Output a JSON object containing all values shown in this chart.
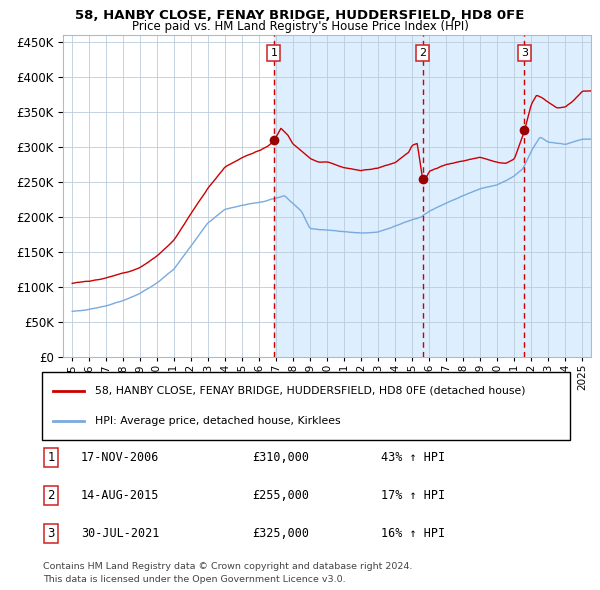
{
  "title": "58, HANBY CLOSE, FENAY BRIDGE, HUDDERSFIELD, HD8 0FE",
  "subtitle": "Price paid vs. HM Land Registry's House Price Index (HPI)",
  "legend_line1": "58, HANBY CLOSE, FENAY BRIDGE, HUDDERSFIELD, HD8 0FE (detached house)",
  "legend_line2": "HPI: Average price, detached house, Kirklees",
  "footnote1": "Contains HM Land Registry data © Crown copyright and database right 2024.",
  "footnote2": "This data is licensed under the Open Government Licence v3.0.",
  "sale_labels": [
    "1",
    "2",
    "3"
  ],
  "sale_dates_label": [
    "17-NOV-2006",
    "14-AUG-2015",
    "30-JUL-2021"
  ],
  "sale_prices_label": [
    "£310,000",
    "£255,000",
    "£325,000"
  ],
  "sale_hpi_label": [
    "43% ↑ HPI",
    "17% ↑ HPI",
    "16% ↑ HPI"
  ],
  "sale_years": [
    2006.88,
    2015.62,
    2021.58
  ],
  "sale_prices": [
    310000,
    255000,
    325000
  ],
  "line_color_red": "#cc0000",
  "line_color_blue": "#7aaadd",
  "vline_color_red": "#cc0000",
  "bg_fill_color": "#ddeeff",
  "grid_color": "#bbccdd",
  "ylim": [
    0,
    460000
  ],
  "yticks": [
    0,
    50000,
    100000,
    150000,
    200000,
    250000,
    300000,
    350000,
    400000,
    450000
  ],
  "xlim_start": 1994.5,
  "xlim_end": 2025.5,
  "xticks": [
    1995,
    1996,
    1997,
    1998,
    1999,
    2000,
    2001,
    2002,
    2003,
    2004,
    2005,
    2006,
    2007,
    2008,
    2009,
    2010,
    2011,
    2012,
    2013,
    2014,
    2015,
    2016,
    2017,
    2018,
    2019,
    2020,
    2021,
    2022,
    2023,
    2024,
    2025
  ]
}
